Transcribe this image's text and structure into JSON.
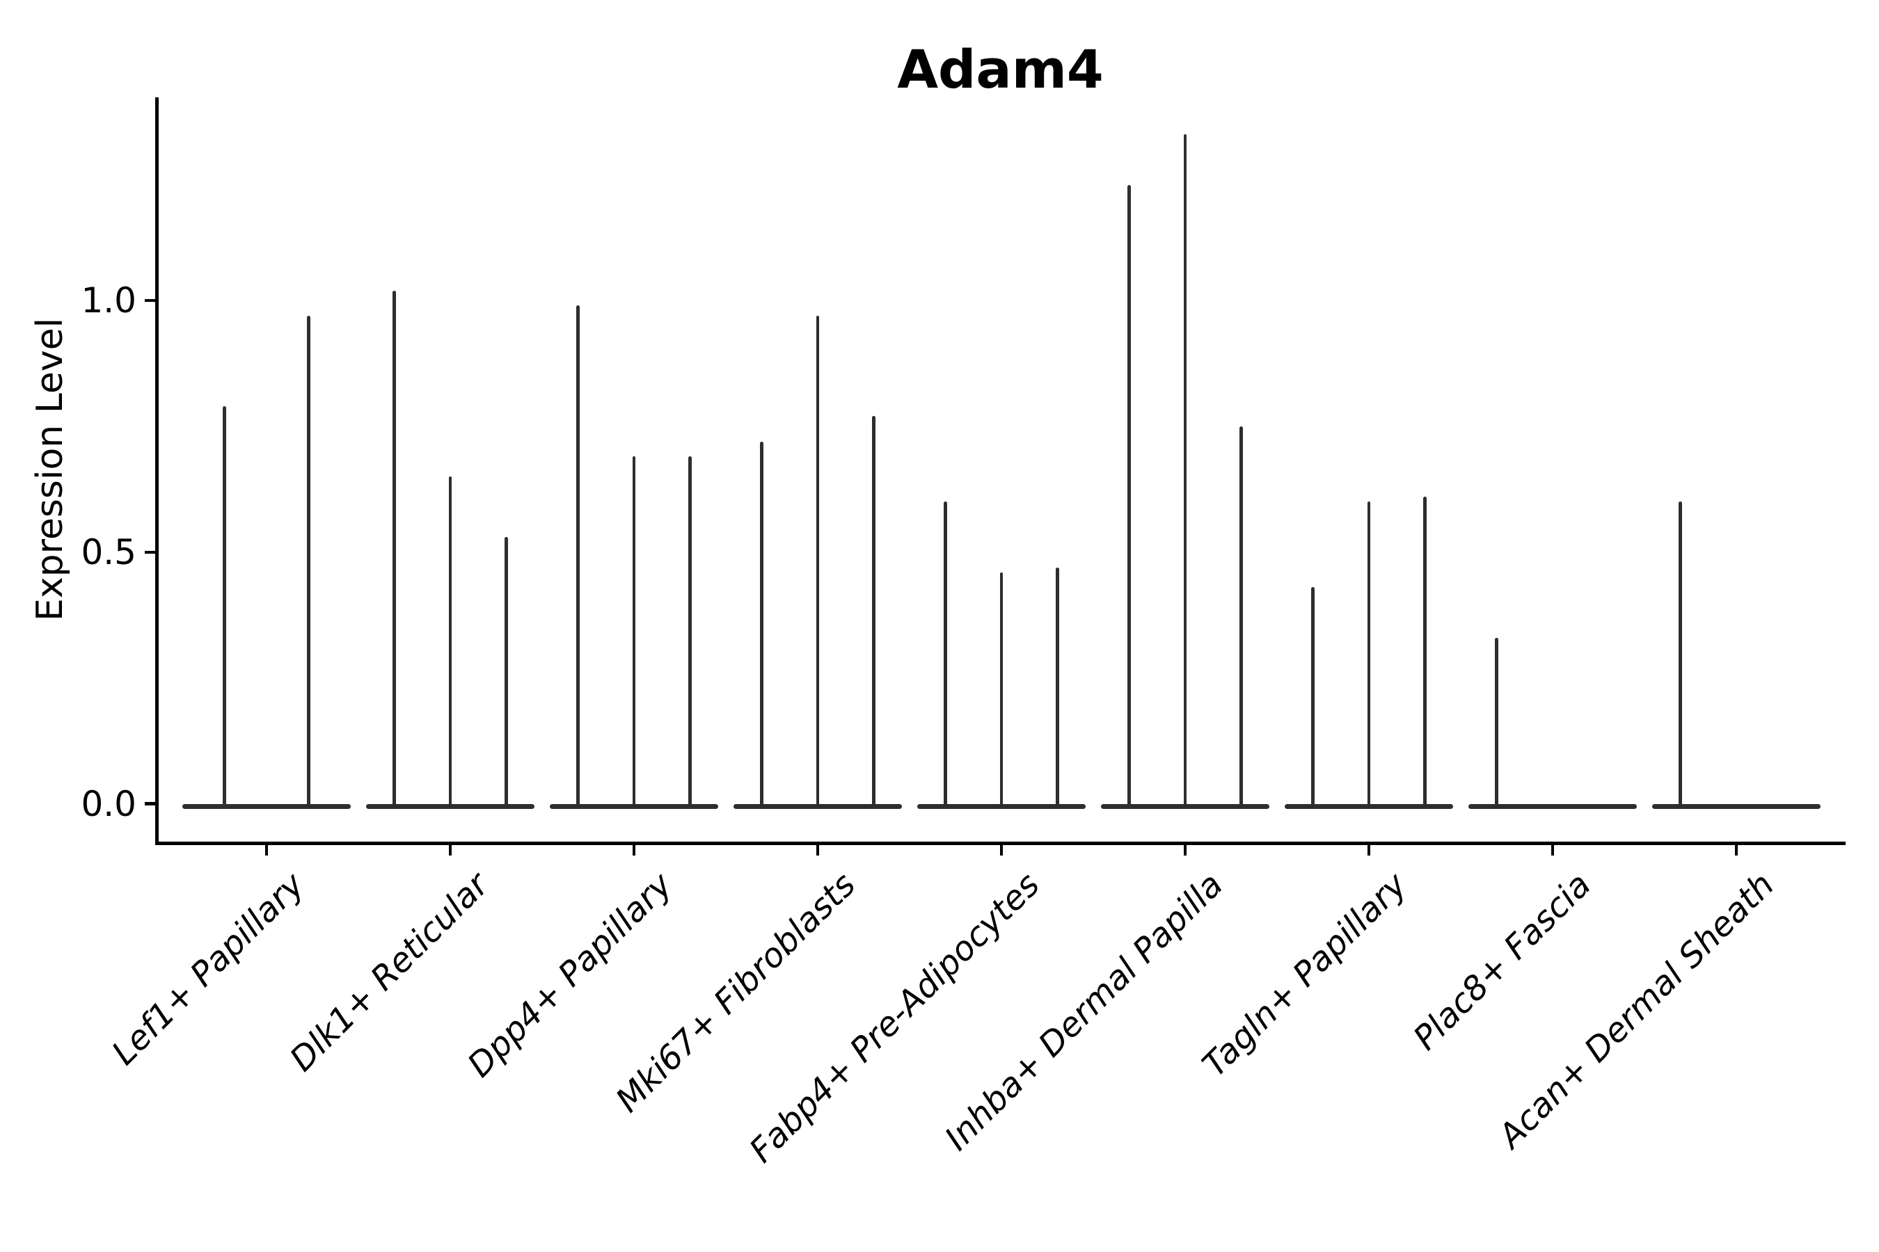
{
  "title": "Adam4",
  "accent_color": "#2e2e2e",
  "axis_color": "#000000",
  "chart_data": {
    "type": "violin",
    "title": "Adam4",
    "xlabel": "",
    "ylabel": "Expression Level",
    "yticks": [
      0.0,
      0.5,
      1.0
    ],
    "ylim": [
      -0.08,
      1.4
    ],
    "grid": false,
    "legend": "none",
    "note": "Thin spike-like violins per cluster; flat (zero) violins collapse onto the baseline at 0",
    "categories": [
      "Lef1+ Papillary",
      "Dlk1+ Reticular",
      "Dpp4+ Papillary",
      "Mki67+ Fibroblasts",
      "Fabp4+ Pre-Adipocytes",
      "Inhba+ Dermal Papilla",
      "Tagln+ Papillary",
      "Plac8+ Fascia",
      "Acan+ Dermal Sheath"
    ],
    "series": [
      {
        "category": "Lef1+ Papillary",
        "violin_peaks": [
          0.79,
          0.97
        ]
      },
      {
        "category": "Dlk1+ Reticular",
        "violin_peaks": [
          1.02,
          0.65,
          0.53
        ]
      },
      {
        "category": "Dpp4+ Papillary",
        "violin_peaks": [
          0.99,
          0.69,
          0.69
        ]
      },
      {
        "category": "Mki67+ Fibroblasts",
        "violin_peaks": [
          0.72,
          0.97,
          0.77
        ]
      },
      {
        "category": "Fabp4+ Pre-Adipocytes",
        "violin_peaks": [
          0.6,
          0.46,
          0.47
        ]
      },
      {
        "category": "Inhba+ Dermal Papilla",
        "violin_peaks": [
          1.23,
          1.33,
          0.75
        ]
      },
      {
        "category": "Tagln+ Papillary",
        "violin_peaks": [
          0.43,
          0.6,
          0.61
        ]
      },
      {
        "category": "Plac8+ Fascia",
        "violin_peaks": [
          0.33,
          0.0,
          0.0
        ]
      },
      {
        "category": "Acan+ Dermal Sheath",
        "violin_peaks": [
          0.6,
          0.0,
          0.0
        ]
      }
    ]
  }
}
